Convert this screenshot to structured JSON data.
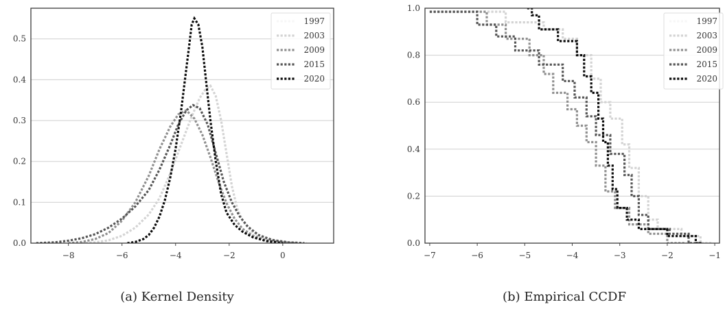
{
  "chart_data": [
    {
      "type": "line",
      "caption": "(a) Kernel Density",
      "xlim": [
        -9.4,
        1.9
      ],
      "ylim": [
        0,
        0.575
      ],
      "xticks": [
        -8,
        -6,
        -4,
        -2,
        0
      ],
      "xtick_labels": [
        "−8",
        "−6",
        "−4",
        "−2",
        "0"
      ],
      "yticks": [
        0.0,
        0.1,
        0.2,
        0.3,
        0.4,
        0.5
      ],
      "ytick_labels": [
        "0.0",
        "0.1",
        "0.2",
        "0.3",
        "0.4",
        "0.5"
      ],
      "grid": "horizontal",
      "legend": "top-right",
      "series": [
        {
          "name": "1997",
          "color": "#f7f7f7",
          "points": []
        },
        {
          "name": "2003",
          "color": "#d3d3d3",
          "points": [
            [
              -7.5,
              0.0
            ],
            [
              -7,
              0.002
            ],
            [
              -6.5,
              0.007
            ],
            [
              -6,
              0.018
            ],
            [
              -5.5,
              0.038
            ],
            [
              -5,
              0.07
            ],
            [
              -4.6,
              0.11
            ],
            [
              -4.2,
              0.17
            ],
            [
              -3.8,
              0.24
            ],
            [
              -3.4,
              0.31
            ],
            [
              -3.1,
              0.355
            ],
            [
              -2.9,
              0.375
            ],
            [
              -2.7,
              0.385
            ],
            [
              -2.5,
              0.36
            ],
            [
              -2.3,
              0.3
            ],
            [
              -2.1,
              0.22
            ],
            [
              -1.9,
              0.14
            ],
            [
              -1.7,
              0.085
            ],
            [
              -1.5,
              0.055
            ],
            [
              -1.2,
              0.03
            ],
            [
              -0.8,
              0.015
            ],
            [
              -0.3,
              0.006
            ],
            [
              0.2,
              0.002
            ],
            [
              0.9,
              0.0
            ]
          ]
        },
        {
          "name": "2009",
          "color": "#8f8f8f",
          "points": [
            [
              -8,
              0.0
            ],
            [
              -7.5,
              0.003
            ],
            [
              -7,
              0.01
            ],
            [
              -6.5,
              0.025
            ],
            [
              -6,
              0.055
            ],
            [
              -5.5,
              0.1
            ],
            [
              -5,
              0.165
            ],
            [
              -4.6,
              0.23
            ],
            [
              -4.2,
              0.285
            ],
            [
              -3.9,
              0.315
            ],
            [
              -3.6,
              0.325
            ],
            [
              -3.3,
              0.305
            ],
            [
              -3.0,
              0.265
            ],
            [
              -2.7,
              0.21
            ],
            [
              -2.4,
              0.15
            ],
            [
              -2.1,
              0.098
            ],
            [
              -1.8,
              0.06
            ],
            [
              -1.5,
              0.035
            ],
            [
              -1.1,
              0.018
            ],
            [
              -0.6,
              0.007
            ],
            [
              0,
              0.002
            ],
            [
              0.5,
              0.0
            ]
          ]
        },
        {
          "name": "2015",
          "color": "#555555",
          "points": [
            [
              -9.2,
              0.0
            ],
            [
              -8.5,
              0.002
            ],
            [
              -8,
              0.006
            ],
            [
              -7.5,
              0.012
            ],
            [
              -7,
              0.022
            ],
            [
              -6.5,
              0.038
            ],
            [
              -6,
              0.06
            ],
            [
              -5.5,
              0.09
            ],
            [
              -5,
              0.13
            ],
            [
              -4.6,
              0.18
            ],
            [
              -4.2,
              0.24
            ],
            [
              -3.9,
              0.29
            ],
            [
              -3.6,
              0.325
            ],
            [
              -3.35,
              0.338
            ],
            [
              -3.1,
              0.33
            ],
            [
              -2.8,
              0.29
            ],
            [
              -2.5,
              0.22
            ],
            [
              -2.2,
              0.15
            ],
            [
              -1.9,
              0.1
            ],
            [
              -1.6,
              0.065
            ],
            [
              -1.3,
              0.04
            ],
            [
              -0.9,
              0.02
            ],
            [
              -0.4,
              0.008
            ],
            [
              0.2,
              0.002
            ],
            [
              0.8,
              0.0
            ]
          ]
        },
        {
          "name": "2020",
          "color": "#0a0a0a",
          "points": [
            [
              -5.8,
              0.0
            ],
            [
              -5.5,
              0.003
            ],
            [
              -5.2,
              0.01
            ],
            [
              -5.0,
              0.02
            ],
            [
              -4.8,
              0.038
            ],
            [
              -4.6,
              0.065
            ],
            [
              -4.4,
              0.105
            ],
            [
              -4.2,
              0.16
            ],
            [
              -4.0,
              0.23
            ],
            [
              -3.8,
              0.32
            ],
            [
              -3.65,
              0.4
            ],
            [
              -3.5,
              0.48
            ],
            [
              -3.4,
              0.535
            ],
            [
              -3.3,
              0.55
            ],
            [
              -3.15,
              0.535
            ],
            [
              -3.0,
              0.48
            ],
            [
              -2.85,
              0.39
            ],
            [
              -2.7,
              0.3
            ],
            [
              -2.5,
              0.2
            ],
            [
              -2.3,
              0.12
            ],
            [
              -2.1,
              0.075
            ],
            [
              -1.8,
              0.045
            ],
            [
              -1.5,
              0.028
            ],
            [
              -1.1,
              0.014
            ],
            [
              -0.6,
              0.005
            ],
            [
              0,
              0.0
            ]
          ]
        }
      ]
    },
    {
      "type": "line",
      "caption": "(b) Empirical CCDF",
      "xlim": [
        -7.1,
        -0.9
      ],
      "ylim": [
        0,
        1.0
      ],
      "xticks": [
        -7,
        -6,
        -5,
        -4,
        -3,
        -2,
        -1
      ],
      "xtick_labels": [
        "−7",
        "−6",
        "−5",
        "−4",
        "−3",
        "−2",
        "−1"
      ],
      "yticks": [
        0.0,
        0.2,
        0.4,
        0.6,
        0.8,
        1.0
      ],
      "ytick_labels": [
        "0.0",
        "0.2",
        "0.4",
        "0.6",
        "0.8",
        "1.0"
      ],
      "grid": "horizontal",
      "legend": "top-right",
      "series": [
        {
          "name": "1997",
          "color": "#f7f7f7",
          "points": []
        },
        {
          "name": "2003",
          "color": "#d3d3d3",
          "points": [
            [
              -7.0,
              0.985
            ],
            [
              -5.4,
              0.985
            ],
            [
              -5.4,
              0.94
            ],
            [
              -4.6,
              0.94
            ],
            [
              -4.6,
              0.91
            ],
            [
              -4.2,
              0.91
            ],
            [
              -4.2,
              0.87
            ],
            [
              -3.9,
              0.87
            ],
            [
              -3.9,
              0.8
            ],
            [
              -3.6,
              0.8
            ],
            [
              -3.6,
              0.7
            ],
            [
              -3.4,
              0.7
            ],
            [
              -3.4,
              0.6
            ],
            [
              -3.2,
              0.6
            ],
            [
              -3.2,
              0.53
            ],
            [
              -2.95,
              0.53
            ],
            [
              -2.95,
              0.42
            ],
            [
              -2.8,
              0.42
            ],
            [
              -2.8,
              0.32
            ],
            [
              -2.6,
              0.32
            ],
            [
              -2.6,
              0.2
            ],
            [
              -2.4,
              0.2
            ],
            [
              -2.4,
              0.1
            ],
            [
              -2.2,
              0.1
            ],
            [
              -2.2,
              0.06
            ],
            [
              -1.7,
              0.06
            ],
            [
              -1.7,
              0.03
            ],
            [
              -1.3,
              0.03
            ],
            [
              -1.3,
              0.0
            ],
            [
              -1.05,
              0.0
            ]
          ]
        },
        {
          "name": "2009",
          "color": "#8f8f8f",
          "points": [
            [
              -7.0,
              0.985
            ],
            [
              -5.8,
              0.985
            ],
            [
              -5.8,
              0.93
            ],
            [
              -5.4,
              0.93
            ],
            [
              -5.4,
              0.87
            ],
            [
              -4.9,
              0.87
            ],
            [
              -4.9,
              0.8
            ],
            [
              -4.6,
              0.8
            ],
            [
              -4.6,
              0.72
            ],
            [
              -4.4,
              0.72
            ],
            [
              -4.4,
              0.64
            ],
            [
              -4.1,
              0.64
            ],
            [
              -4.1,
              0.57
            ],
            [
              -3.9,
              0.57
            ],
            [
              -3.9,
              0.5
            ],
            [
              -3.7,
              0.5
            ],
            [
              -3.7,
              0.43
            ],
            [
              -3.5,
              0.43
            ],
            [
              -3.5,
              0.33
            ],
            [
              -3.3,
              0.33
            ],
            [
              -3.3,
              0.22
            ],
            [
              -3.1,
              0.22
            ],
            [
              -3.1,
              0.15
            ],
            [
              -2.8,
              0.15
            ],
            [
              -2.8,
              0.08
            ],
            [
              -2.4,
              0.08
            ],
            [
              -2.4,
              0.04
            ],
            [
              -2.0,
              0.04
            ],
            [
              -2.0,
              0.0
            ],
            [
              -1.6,
              0.0
            ]
          ]
        },
        {
          "name": "2015",
          "color": "#555555",
          "points": [
            [
              -7.0,
              0.985
            ],
            [
              -6.0,
              0.985
            ],
            [
              -6.0,
              0.93
            ],
            [
              -5.6,
              0.93
            ],
            [
              -5.6,
              0.88
            ],
            [
              -5.2,
              0.88
            ],
            [
              -5.2,
              0.82
            ],
            [
              -4.7,
              0.82
            ],
            [
              -4.7,
              0.76
            ],
            [
              -4.2,
              0.76
            ],
            [
              -4.2,
              0.69
            ],
            [
              -3.95,
              0.69
            ],
            [
              -3.95,
              0.62
            ],
            [
              -3.7,
              0.62
            ],
            [
              -3.7,
              0.54
            ],
            [
              -3.5,
              0.54
            ],
            [
              -3.5,
              0.46
            ],
            [
              -3.2,
              0.46
            ],
            [
              -3.2,
              0.38
            ],
            [
              -2.9,
              0.38
            ],
            [
              -2.9,
              0.29
            ],
            [
              -2.75,
              0.29
            ],
            [
              -2.75,
              0.2
            ],
            [
              -2.6,
              0.2
            ],
            [
              -2.6,
              0.12
            ],
            [
              -2.4,
              0.12
            ],
            [
              -2.4,
              0.06
            ],
            [
              -1.95,
              0.06
            ],
            [
              -1.95,
              0.04
            ],
            [
              -1.55,
              0.04
            ],
            [
              -1.55,
              0.0
            ],
            [
              -1.3,
              0.0
            ]
          ]
        },
        {
          "name": "2020",
          "color": "#0a0a0a",
          "points": [
            [
              -4.95,
              1.0
            ],
            [
              -4.85,
              1.0
            ],
            [
              -4.85,
              0.97
            ],
            [
              -4.7,
              0.97
            ],
            [
              -4.7,
              0.91
            ],
            [
              -4.3,
              0.91
            ],
            [
              -4.3,
              0.86
            ],
            [
              -3.9,
              0.86
            ],
            [
              -3.9,
              0.8
            ],
            [
              -3.75,
              0.8
            ],
            [
              -3.75,
              0.71
            ],
            [
              -3.6,
              0.71
            ],
            [
              -3.6,
              0.64
            ],
            [
              -3.45,
              0.64
            ],
            [
              -3.45,
              0.53
            ],
            [
              -3.35,
              0.53
            ],
            [
              -3.35,
              0.43
            ],
            [
              -3.25,
              0.43
            ],
            [
              -3.25,
              0.33
            ],
            [
              -3.15,
              0.33
            ],
            [
              -3.15,
              0.23
            ],
            [
              -3.05,
              0.23
            ],
            [
              -3.05,
              0.15
            ],
            [
              -2.85,
              0.15
            ],
            [
              -2.85,
              0.1
            ],
            [
              -2.6,
              0.1
            ],
            [
              -2.6,
              0.06
            ],
            [
              -2.0,
              0.06
            ],
            [
              -2.0,
              0.03
            ],
            [
              -1.4,
              0.03
            ],
            [
              -1.4,
              0.0
            ],
            [
              -1.25,
              0.0
            ]
          ]
        }
      ]
    }
  ]
}
